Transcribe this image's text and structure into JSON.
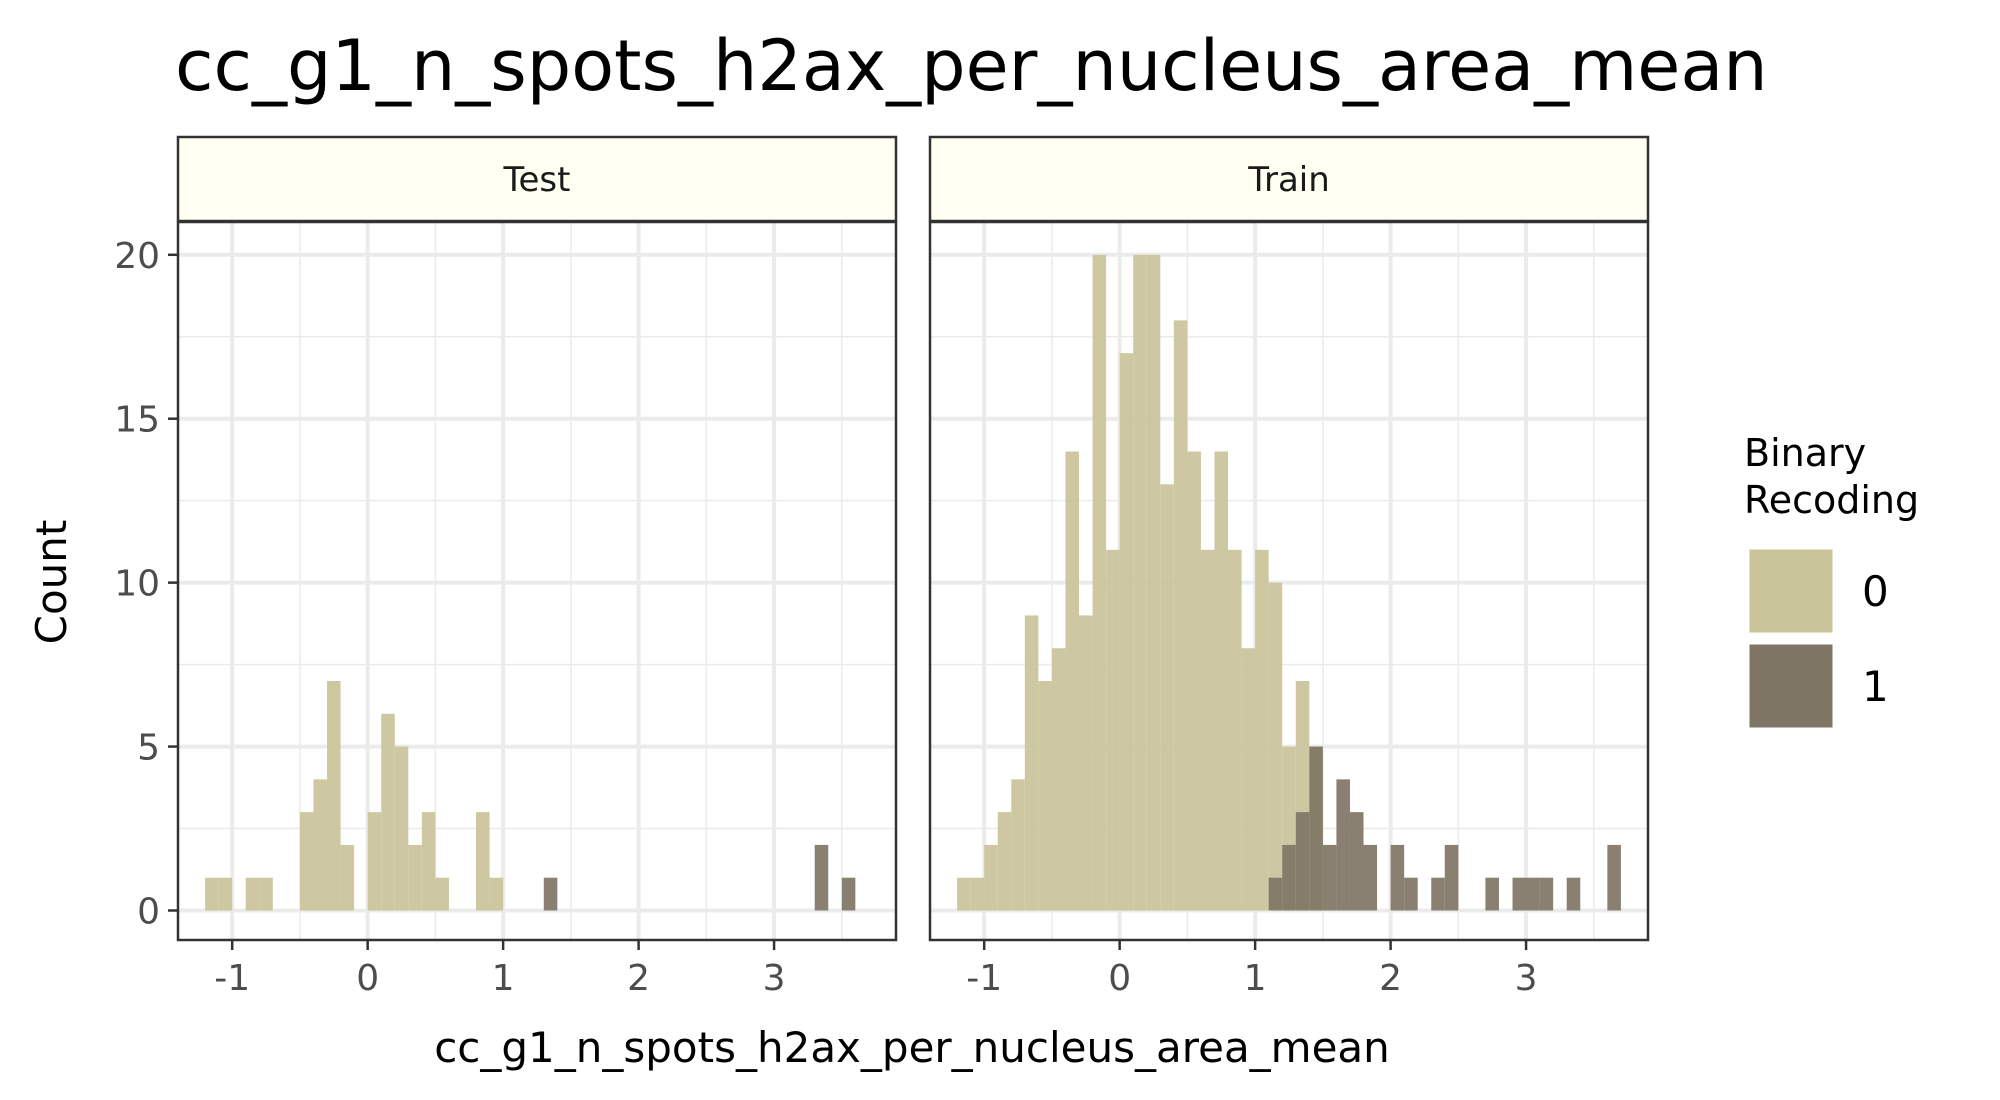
{
  "chart_data": {
    "type": "bar",
    "title": "cc_g1_n_spots_h2ax_per_nucleus_area_mean",
    "xlabel": "cc_g1_n_spots_h2ax_per_nucleus_area_mean",
    "ylabel": "Count",
    "xlim": [
      -1.4,
      3.9
    ],
    "ylim": [
      -0.9,
      21
    ],
    "x_ticks": [
      -1,
      0,
      1,
      2,
      3
    ],
    "y_ticks": [
      0,
      5,
      10,
      15,
      20
    ],
    "grid": true,
    "bin_width": 0.1,
    "legend": {
      "title_lines": [
        "Binary",
        "Recoding"
      ],
      "placement": "right",
      "items": [
        {
          "label": "0",
          "color": "#C9C39A"
        },
        {
          "label": "1",
          "color": "#7F7565"
        }
      ]
    },
    "panels": [
      {
        "name": "Test",
        "series": [
          {
            "name": "0",
            "bins": [
              {
                "x": -1.15,
                "count": 1
              },
              {
                "x": -1.05,
                "count": 1
              },
              {
                "x": -0.85,
                "count": 1
              },
              {
                "x": -0.75,
                "count": 1
              },
              {
                "x": -0.45,
                "count": 3
              },
              {
                "x": -0.35,
                "count": 4
              },
              {
                "x": -0.25,
                "count": 7
              },
              {
                "x": -0.15,
                "count": 2
              },
              {
                "x": 0.05,
                "count": 3
              },
              {
                "x": 0.15,
                "count": 6
              },
              {
                "x": 0.25,
                "count": 5
              },
              {
                "x": 0.35,
                "count": 2
              },
              {
                "x": 0.45,
                "count": 3
              },
              {
                "x": 0.55,
                "count": 1
              },
              {
                "x": 0.85,
                "count": 3
              },
              {
                "x": 0.95,
                "count": 1
              }
            ]
          },
          {
            "name": "1",
            "bins": [
              {
                "x": 1.35,
                "count": 1
              },
              {
                "x": 3.35,
                "count": 2
              },
              {
                "x": 3.55,
                "count": 1
              }
            ]
          }
        ]
      },
      {
        "name": "Train",
        "series": [
          {
            "name": "0",
            "bins": [
              {
                "x": -1.15,
                "count": 1
              },
              {
                "x": -1.05,
                "count": 1
              },
              {
                "x": -0.95,
                "count": 2
              },
              {
                "x": -0.85,
                "count": 3
              },
              {
                "x": -0.75,
                "count": 4
              },
              {
                "x": -0.65,
                "count": 9
              },
              {
                "x": -0.55,
                "count": 7
              },
              {
                "x": -0.45,
                "count": 8
              },
              {
                "x": -0.35,
                "count": 14
              },
              {
                "x": -0.25,
                "count": 9
              },
              {
                "x": -0.15,
                "count": 20
              },
              {
                "x": -0.05,
                "count": 11
              },
              {
                "x": 0.05,
                "count": 17
              },
              {
                "x": 0.15,
                "count": 20
              },
              {
                "x": 0.25,
                "count": 20
              },
              {
                "x": 0.35,
                "count": 13
              },
              {
                "x": 0.45,
                "count": 18
              },
              {
                "x": 0.55,
                "count": 14
              },
              {
                "x": 0.65,
                "count": 11
              },
              {
                "x": 0.75,
                "count": 14
              },
              {
                "x": 0.85,
                "count": 11
              },
              {
                "x": 0.95,
                "count": 8
              },
              {
                "x": 1.05,
                "count": 11
              },
              {
                "x": 1.15,
                "count": 10
              },
              {
                "x": 1.25,
                "count": 5
              },
              {
                "x": 1.35,
                "count": 7
              },
              {
                "x": 1.45,
                "count": 5
              }
            ]
          },
          {
            "name": "1",
            "bins": [
              {
                "x": 1.15,
                "count": 1
              },
              {
                "x": 1.25,
                "count": 2
              },
              {
                "x": 1.35,
                "count": 3
              },
              {
                "x": 1.45,
                "count": 5
              },
              {
                "x": 1.55,
                "count": 2
              },
              {
                "x": 1.65,
                "count": 4
              },
              {
                "x": 1.75,
                "count": 3
              },
              {
                "x": 1.85,
                "count": 2
              },
              {
                "x": 2.05,
                "count": 2
              },
              {
                "x": 2.15,
                "count": 1
              },
              {
                "x": 2.35,
                "count": 1
              },
              {
                "x": 2.45,
                "count": 2
              },
              {
                "x": 2.75,
                "count": 1
              },
              {
                "x": 2.95,
                "count": 1
              },
              {
                "x": 3.05,
                "count": 1
              },
              {
                "x": 3.15,
                "count": 1
              },
              {
                "x": 3.35,
                "count": 1
              },
              {
                "x": 3.65,
                "count": 2
              }
            ]
          }
        ]
      }
    ]
  }
}
